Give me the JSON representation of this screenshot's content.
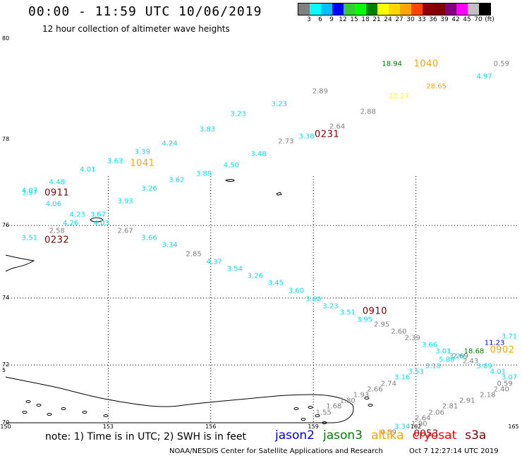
{
  "header": {
    "title": "00:00 - 11:59 UTC 10/06/2019",
    "subtitle": "12 hour collection of altimeter wave heights"
  },
  "colorbar": {
    "colors": [
      "#808080",
      "#00ffff",
      "#00bfff",
      "#0000ff",
      "#32cd32",
      "#00ff00",
      "#008000",
      "#ffff00",
      "#ffd700",
      "#ffa500",
      "#ff4500",
      "#8b0000",
      "#800000",
      "#800080",
      "#ff00ff",
      "#c0c0c0",
      "#000000"
    ],
    "labels": [
      "3",
      "6",
      "9",
      "12",
      "15",
      "18",
      "21",
      "24",
      "27",
      "30",
      "33",
      "36",
      "39",
      "42",
      "45",
      "70",
      "(ft)"
    ]
  },
  "axes": {
    "lat_labels": [
      {
        "text": "80",
        "lat": 80
      },
      {
        "text": "78",
        "lat": 78
      },
      {
        "text": "76",
        "lat": 76
      },
      {
        "text": "74",
        "lat": 74
      },
      {
        "text": "72",
        "lat": 72
      },
      {
        "text": "5",
        "lat": 71.8
      },
      {
        "text": "70",
        "lat": 70
      }
    ],
    "lon_labels": [
      {
        "text": "150",
        "lon": 150
      },
      {
        "text": "153",
        "lon": 153
      },
      {
        "text": "156",
        "lon": 156
      },
      {
        "text": "159",
        "lon": 159
      },
      {
        "text": "162",
        "lon": 162
      },
      {
        "text": "165",
        "lon": 165
      }
    ]
  },
  "observations": [
    {
      "v": "4.07",
      "c": "#00e5e5",
      "lon": 150.7,
      "lat": 76.8
    },
    {
      "v": "3.97",
      "c": "#00e5e5",
      "lon": 150.7,
      "lat": 76.75
    },
    {
      "v": "4.48",
      "c": "#00e5e5",
      "lon": 151.5,
      "lat": 77.0
    },
    {
      "v": "4.01",
      "c": "#00e5e5",
      "lon": 152.4,
      "lat": 77.3
    },
    {
      "v": "3.63",
      "c": "#00e5e5",
      "lon": 153.2,
      "lat": 77.5
    },
    {
      "v": "3.39",
      "c": "#00e5e5",
      "lon": 154.0,
      "lat": 77.7
    },
    {
      "v": "4.24",
      "c": "#00e5e5",
      "lon": 154.8,
      "lat": 77.9
    },
    {
      "v": "3.83",
      "c": "#00e5e5",
      "lon": 155.9,
      "lat": 78.2
    },
    {
      "v": "3.23",
      "c": "#00e5e5",
      "lon": 156.8,
      "lat": 78.5
    },
    {
      "v": "3.23",
      "c": "#00e5e5",
      "lon": 158.0,
      "lat": 78.7
    },
    {
      "v": "2.89",
      "c": "#808080",
      "lon": 159.2,
      "lat": 78.95
    },
    {
      "v": "4.06",
      "c": "#00e5e5",
      "lon": 151.4,
      "lat": 76.5
    },
    {
      "v": "4.23",
      "c": "#00e5e5",
      "lon": 152.1,
      "lat": 76.25
    },
    {
      "v": "3.67",
      "c": "#00e5e5",
      "lon": 152.7,
      "lat": 76.25
    },
    {
      "v": "3.93",
      "c": "#00e5e5",
      "lon": 153.5,
      "lat": 76.55
    },
    {
      "v": "3.26",
      "c": "#00e5e5",
      "lon": 154.2,
      "lat": 76.85
    },
    {
      "v": "3.62",
      "c": "#00e5e5",
      "lon": 155.0,
      "lat": 77.05
    },
    {
      "v": "3.89",
      "c": "#00e5e5",
      "lon": 155.8,
      "lat": 77.2
    },
    {
      "v": "4.50",
      "c": "#00e5e5",
      "lon": 156.6,
      "lat": 77.4
    },
    {
      "v": "3.48",
      "c": "#00e5e5",
      "lon": 157.4,
      "lat": 77.65
    },
    {
      "v": "2.73",
      "c": "#808080",
      "lon": 158.2,
      "lat": 77.95
    },
    {
      "v": "3.38",
      "c": "#00e5e5",
      "lon": 158.8,
      "lat": 78.05
    },
    {
      "v": "2.64",
      "c": "#808080",
      "lon": 159.7,
      "lat": 78.25
    },
    {
      "v": "2.88",
      "c": "#808080",
      "lon": 160.6,
      "lat": 78.55
    },
    {
      "v": "22.27",
      "c": "#ffff00",
      "lon": 161.5,
      "lat": 78.85
    },
    {
      "v": "18.94",
      "c": "#008000",
      "lon": 161.3,
      "lat": 79.5
    },
    {
      "v": "28.65",
      "c": "#ffa500",
      "lon": 162.6,
      "lat": 79.05
    },
    {
      "v": "0.59",
      "c": "#808080",
      "lon": 164.5,
      "lat": 79.5
    },
    {
      "v": "4.97",
      "c": "#00e5e5",
      "lon": 164.0,
      "lat": 79.25
    },
    {
      "v": "4.26",
      "c": "#00e5e5",
      "lon": 151.9,
      "lat": 76.05
    },
    {
      "v": "4.03",
      "c": "#00e5e5",
      "lon": 152.8,
      "lat": 76.05
    },
    {
      "v": "2.58",
      "c": "#808080",
      "lon": 151.5,
      "lat": 75.85
    },
    {
      "v": "3.51",
      "c": "#00e5e5",
      "lon": 150.7,
      "lat": 75.65
    },
    {
      "v": "2.67",
      "c": "#808080",
      "lon": 153.5,
      "lat": 75.85
    },
    {
      "v": "3.66",
      "c": "#00e5e5",
      "lon": 154.2,
      "lat": 75.65
    },
    {
      "v": "3.34",
      "c": "#00e5e5",
      "lon": 154.8,
      "lat": 75.45
    },
    {
      "v": "2.85",
      "c": "#808080",
      "lon": 155.5,
      "lat": 75.2
    },
    {
      "v": "4.37",
      "c": "#00e5e5",
      "lon": 156.1,
      "lat": 75.0
    },
    {
      "v": "3.54",
      "c": "#00e5e5",
      "lon": 156.7,
      "lat": 74.8
    },
    {
      "v": "3.26",
      "c": "#00e5e5",
      "lon": 157.3,
      "lat": 74.6
    },
    {
      "v": "3.45",
      "c": "#00e5e5",
      "lon": 157.9,
      "lat": 74.4
    },
    {
      "v": "3.60",
      "c": "#00e5e5",
      "lon": 158.5,
      "lat": 74.2
    },
    {
      "v": "3.60",
      "c": "#00e5e5",
      "lon": 159.0,
      "lat": 73.95
    },
    {
      "v": "3.23",
      "c": "#00e5e5",
      "lon": 159.5,
      "lat": 73.75
    },
    {
      "v": "3.51",
      "c": "#00e5e5",
      "lon": 160.0,
      "lat": 73.55
    },
    {
      "v": "3.95",
      "c": "#00e5e5",
      "lon": 160.5,
      "lat": 73.35
    },
    {
      "v": "2.95",
      "c": "#808080",
      "lon": 161.0,
      "lat": 73.2
    },
    {
      "v": "2.60",
      "c": "#808080",
      "lon": 161.5,
      "lat": 73.0
    },
    {
      "v": "2.39",
      "c": "#808080",
      "lon": 161.9,
      "lat": 72.8
    },
    {
      "v": "3.66",
      "c": "#00e5e5",
      "lon": 162.4,
      "lat": 72.6
    },
    {
      "v": "3.01",
      "c": "#00e5e5",
      "lon": 162.8,
      "lat": 72.4
    },
    {
      "v": "2.69",
      "c": "#808080",
      "lon": 163.3,
      "lat": 72.25
    },
    {
      "v": "3.29",
      "c": "#00e5e5",
      "lon": 163.2,
      "lat": 72.25
    },
    {
      "v": "18.68",
      "c": "#008000",
      "lon": 163.7,
      "lat": 72.4
    },
    {
      "v": "11.23",
      "c": "#0000ff",
      "lon": 164.3,
      "lat": 72.65
    },
    {
      "v": "3.71",
      "c": "#00e5e5",
      "lon": 164.8,
      "lat": 72.85
    },
    {
      "v": "5.88",
      "c": "#00e5e5",
      "lon": 162.9,
      "lat": 72.15
    },
    {
      "v": "2.43",
      "c": "#808080",
      "lon": 163.6,
      "lat": 72.1
    },
    {
      "v": "3.18",
      "c": "#00e5e5",
      "lon": 162.5,
      "lat": 71.95
    },
    {
      "v": "3.89",
      "c": "#00e5e5",
      "lon": 164.0,
      "lat": 71.95
    },
    {
      "v": "3.53",
      "c": "#00e5e5",
      "lon": 162.0,
      "lat": 71.75
    },
    {
      "v": "4.01",
      "c": "#00e5e5",
      "lon": 164.4,
      "lat": 71.75
    },
    {
      "v": "3.16",
      "c": "#00e5e5",
      "lon": 161.6,
      "lat": 71.55
    },
    {
      "v": "3.07",
      "c": "#00e5e5",
      "lon": 165.0,
      "lat": 71.55
    },
    {
      "v": "2.74",
      "c": "#808080",
      "lon": 161.2,
      "lat": 71.35
    },
    {
      "v": "0.59",
      "c": "#808080",
      "lon": 164.6,
      "lat": 71.35
    },
    {
      "v": "2.66",
      "c": "#808080",
      "lon": 160.8,
      "lat": 71.15
    },
    {
      "v": "2.40",
      "c": "#808080",
      "lon": 164.5,
      "lat": 71.15
    },
    {
      "v": "1.93",
      "c": "#808080",
      "lon": 160.4,
      "lat": 70.95
    },
    {
      "v": "2.18",
      "c": "#808080",
      "lon": 164.1,
      "lat": 70.95
    },
    {
      "v": "1.80",
      "c": "#808080",
      "lon": 160.0,
      "lat": 70.75
    },
    {
      "v": "2.91",
      "c": "#808080",
      "lon": 163.5,
      "lat": 70.75
    },
    {
      "v": "1.68",
      "c": "#808080",
      "lon": 159.6,
      "lat": 70.55
    },
    {
      "v": "2.81",
      "c": "#808080",
      "lon": 163.0,
      "lat": 70.55
    },
    {
      "v": "1.55",
      "c": "#808080",
      "lon": 159.3,
      "lat": 70.35
    },
    {
      "v": "2.06",
      "c": "#808080",
      "lon": 162.6,
      "lat": 70.35
    },
    {
      "v": "2.64",
      "c": "#808080",
      "lon": 162.2,
      "lat": 70.15
    },
    {
      "v": "1.90",
      "c": "#808080",
      "lon": 162.1,
      "lat": 69.95
    },
    {
      "v": "3.34",
      "c": "#00e5e5",
      "lon": 161.6,
      "lat": 69.85
    },
    {
      "v": "0.59",
      "c": "#808080",
      "lon": 161.2,
      "lat": 69.65
    }
  ],
  "passes": [
    {
      "t": "1040",
      "c": "#ffa500",
      "lon": 162.3,
      "lat": 79.5
    },
    {
      "t": "1041",
      "c": "#ffa500",
      "lon": 154.0,
      "lat": 77.45
    },
    {
      "t": "0911",
      "c": "#800000",
      "lon": 151.5,
      "lat": 76.75
    },
    {
      "t": "0231",
      "c": "#800000",
      "lon": 159.4,
      "lat": 78.1
    },
    {
      "t": "0232",
      "c": "#800000",
      "lon": 151.5,
      "lat": 75.6
    },
    {
      "t": "0910",
      "c": "#800000",
      "lon": 160.8,
      "lat": 73.6
    },
    {
      "t": "0902",
      "c": "#ffa500",
      "lon": 164.6,
      "lat": 72.45
    },
    {
      "t": "0053",
      "c": "#800000",
      "lon": 162.3,
      "lat": 69.6
    }
  ],
  "footer": {
    "note": "note: 1) Time is in UTC; 2) SWH is in feet",
    "legend": [
      {
        "name": "jason2",
        "color": "#0000ff"
      },
      {
        "name": "jason3",
        "color": "#008000"
      },
      {
        "name": "altika",
        "color": "#ffa500"
      },
      {
        "name": "cryosat",
        "color": "#ff0000"
      },
      {
        "name": "s3a",
        "color": "#800000"
      }
    ],
    "credits": "NOAA/NESDIS Center for Satellite Applications and Research",
    "stamp": "Oct  7 12:27:14 UTC 2019"
  }
}
